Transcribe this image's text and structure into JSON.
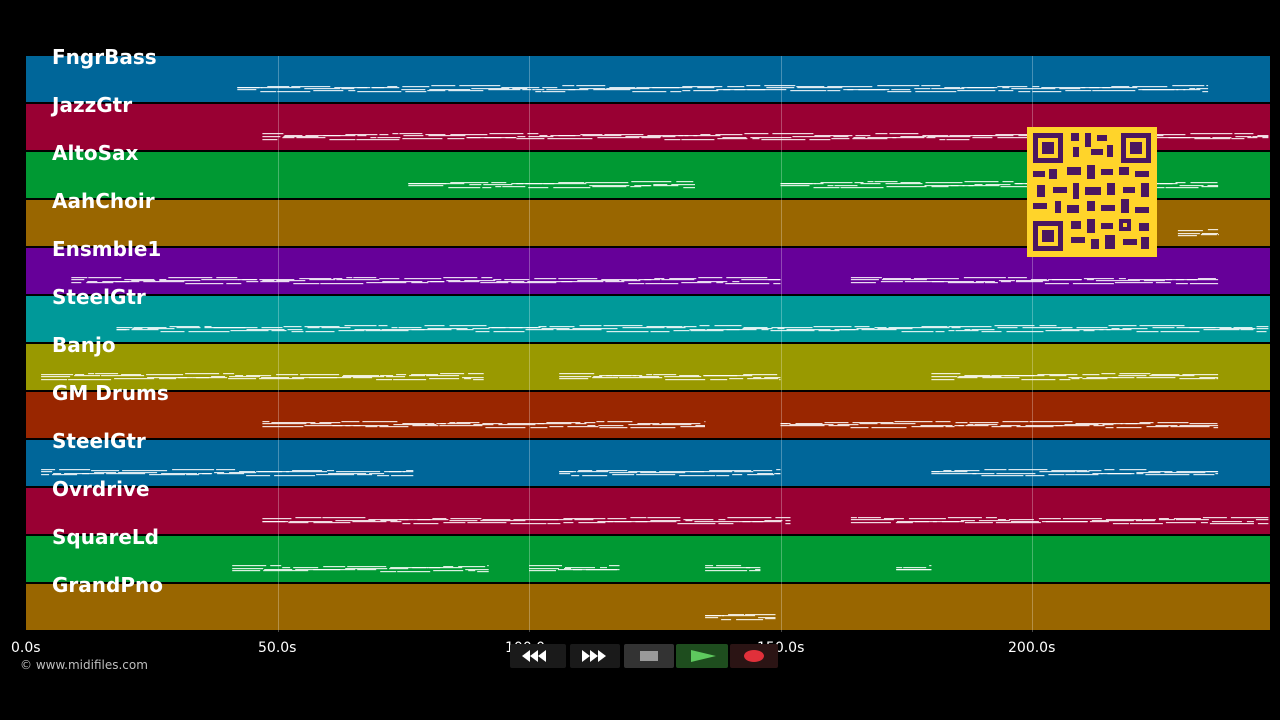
{
  "tracks": [
    {
      "name": "FngrBass",
      "color": "#006699"
    },
    {
      "name": "JazzGtr",
      "color": "#990033"
    },
    {
      "name": "AltoSax",
      "color": "#009933"
    },
    {
      "name": "AahChoir",
      "color": "#996600"
    },
    {
      "name": "Ensmble1",
      "color": "#660099"
    },
    {
      "name": "SteelGtr",
      "color": "#009999"
    },
    {
      "name": "Banjo",
      "color": "#999900"
    },
    {
      "name": "GM Drums",
      "color": "#992600"
    },
    {
      "name": "SteelGtr",
      "color": "#006699"
    },
    {
      "name": "Ovrdrive",
      "color": "#990033"
    },
    {
      "name": "SquareLd",
      "color": "#009933"
    },
    {
      "name": "GrandPno",
      "color": "#996600"
    }
  ],
  "timeline": {
    "ticks": [
      "0.0s",
      "50.0s",
      "100.0s",
      "150.0s",
      "200.0s"
    ],
    "max_seconds": 247
  },
  "note_activity": [
    {
      "track": 0,
      "ranges": [
        [
          42,
          235
        ]
      ]
    },
    {
      "track": 1,
      "ranges": [
        [
          47,
          247
        ]
      ]
    },
    {
      "track": 2,
      "ranges": [
        [
          76,
          133
        ],
        [
          150,
          237
        ]
      ]
    },
    {
      "track": 3,
      "ranges": [
        [
          229,
          237
        ]
      ]
    },
    {
      "track": 4,
      "ranges": [
        [
          9,
          150
        ],
        [
          164,
          237
        ]
      ]
    },
    {
      "track": 5,
      "ranges": [
        [
          18,
          247
        ]
      ]
    },
    {
      "track": 6,
      "ranges": [
        [
          3,
          91
        ],
        [
          106,
          150
        ],
        [
          180,
          237
        ]
      ]
    },
    {
      "track": 7,
      "ranges": [
        [
          47,
          135
        ],
        [
          150,
          237
        ]
      ]
    },
    {
      "track": 8,
      "ranges": [
        [
          3,
          77
        ],
        [
          106,
          150
        ],
        [
          180,
          237
        ]
      ]
    },
    {
      "track": 9,
      "ranges": [
        [
          47,
          152
        ],
        [
          164,
          247
        ]
      ]
    },
    {
      "track": 10,
      "ranges": [
        [
          41,
          92
        ],
        [
          100,
          118
        ],
        [
          135,
          146
        ],
        [
          173,
          180
        ]
      ]
    },
    {
      "track": 11,
      "ranges": [
        [
          135,
          149
        ]
      ]
    }
  ],
  "transport": {
    "buttons": [
      {
        "name": "rewind-button",
        "icon": "rewind-icon"
      },
      {
        "name": "fast-forward-button",
        "icon": "fast-forward-icon"
      },
      {
        "name": "stop-button",
        "icon": "stop-icon"
      },
      {
        "name": "play-button",
        "icon": "play-icon"
      },
      {
        "name": "record-button",
        "icon": "record-icon"
      }
    ]
  },
  "overlay": {
    "qr_icon": "qr-code-icon"
  },
  "copyright": "© www.midifiles.com"
}
